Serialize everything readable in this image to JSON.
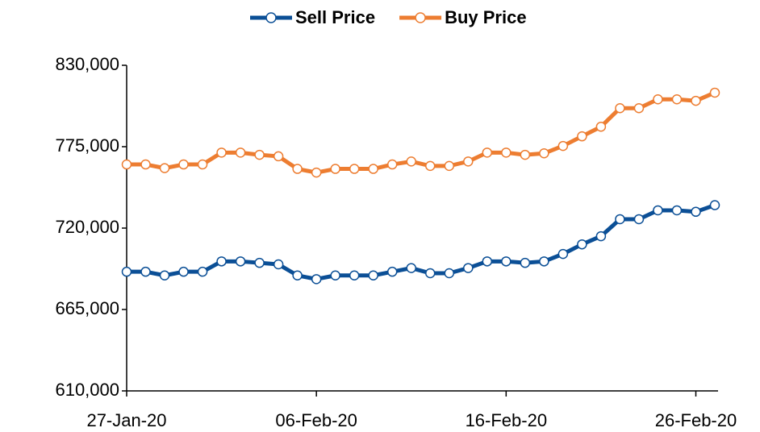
{
  "chart_data": {
    "type": "line",
    "x": [
      "27-Jan-20",
      "28-Jan-20",
      "29-Jan-20",
      "30-Jan-20",
      "31-Jan-20",
      "01-Feb-20",
      "02-Feb-20",
      "03-Feb-20",
      "04-Feb-20",
      "05-Feb-20",
      "06-Feb-20",
      "07-Feb-20",
      "08-Feb-20",
      "09-Feb-20",
      "10-Feb-20",
      "11-Feb-20",
      "12-Feb-20",
      "13-Feb-20",
      "14-Feb-20",
      "15-Feb-20",
      "16-Feb-20",
      "17-Feb-20",
      "18-Feb-20",
      "19-Feb-20",
      "20-Feb-20",
      "21-Feb-20",
      "22-Feb-20",
      "23-Feb-20",
      "24-Feb-20",
      "25-Feb-20",
      "26-Feb-20",
      "27-Feb-20"
    ],
    "series": [
      {
        "name": "Sell Price",
        "color": "#0b4f96",
        "values": [
          690500,
          690500,
          688000,
          690500,
          690500,
          697500,
          697500,
          696500,
          695500,
          688000,
          685500,
          688000,
          688000,
          688000,
          690500,
          693000,
          689500,
          689500,
          693000,
          697500,
          697500,
          696500,
          697500,
          702500,
          709000,
          714500,
          726000,
          726000,
          732000,
          732000,
          731000,
          735500
        ]
      },
      {
        "name": "Buy Price",
        "color": "#ed7d31",
        "values": [
          763000,
          763000,
          760500,
          763000,
          763000,
          771000,
          771000,
          769500,
          768500,
          760000,
          757500,
          760000,
          760000,
          760000,
          763000,
          765000,
          762000,
          762000,
          765000,
          771000,
          771000,
          769500,
          770500,
          775500,
          782000,
          788500,
          801000,
          801000,
          807000,
          807000,
          806000,
          811500
        ]
      }
    ],
    "xlim": [
      "27-Jan-20",
      "27-Feb-20"
    ],
    "xticks": [
      "27-Jan-20",
      "06-Feb-20",
      "16-Feb-20",
      "26-Feb-20"
    ],
    "ylim": [
      610000,
      830000
    ],
    "yticks": [
      {
        "value": 610000,
        "label": "610,000"
      },
      {
        "value": 665000,
        "label": "665,000"
      },
      {
        "value": 720000,
        "label": "720,000"
      },
      {
        "value": 775000,
        "label": "775,000"
      },
      {
        "value": 830000,
        "label": "830,000"
      }
    ],
    "legend": "top"
  }
}
